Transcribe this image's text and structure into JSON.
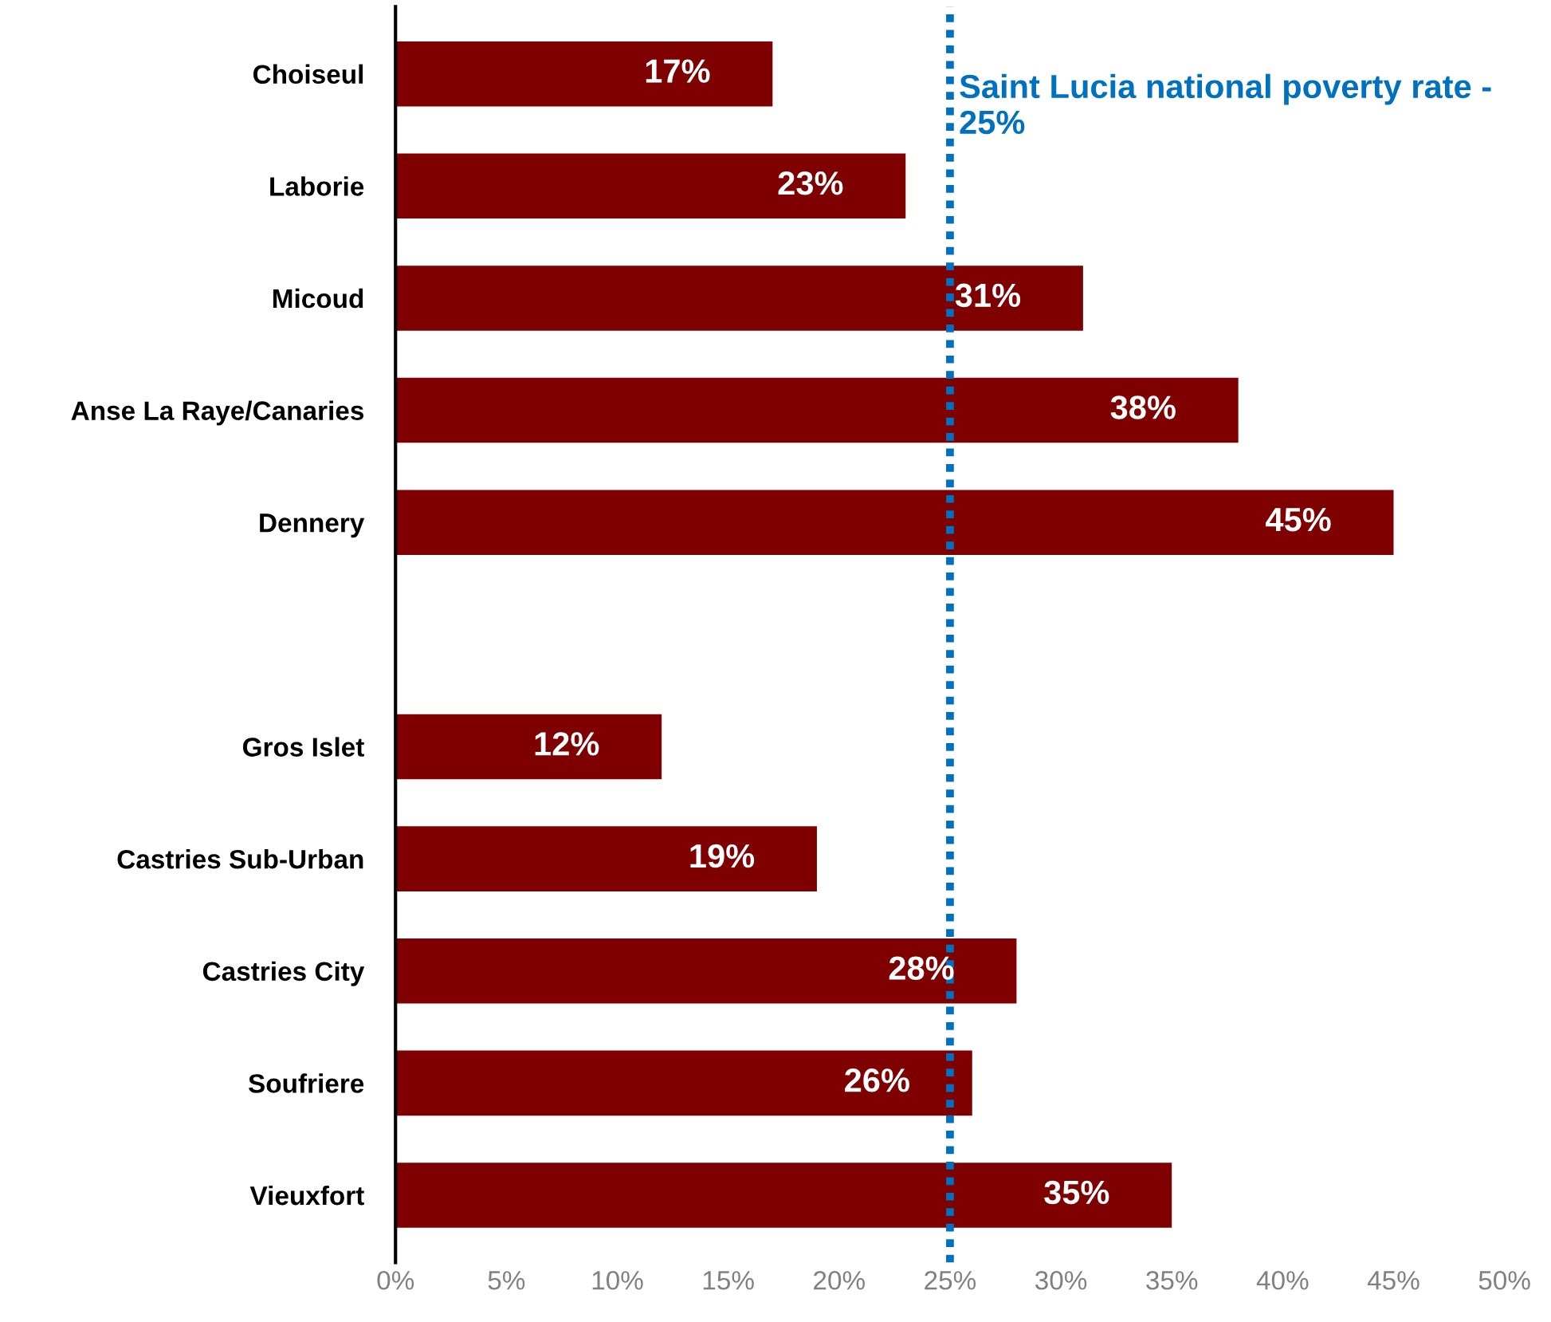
{
  "chart_data": {
    "type": "bar",
    "orientation": "horizontal",
    "categories": [
      "Choiseul",
      "Laborie",
      "Micoud",
      "Anse La Raye/Canaries",
      "Dennery",
      null,
      "Gros Islet",
      "Castries Sub-Urban",
      "Castries City",
      "Soufriere",
      "Vieuxfort"
    ],
    "values": [
      17,
      23,
      31,
      38,
      45,
      null,
      12,
      19,
      28,
      26,
      35
    ],
    "value_labels": [
      "17%",
      "23%",
      "31%",
      "38%",
      "45%",
      null,
      "12%",
      "19%",
      "28%",
      "26%",
      "35%"
    ],
    "color": "#7f0000",
    "xlim": [
      0,
      50
    ],
    "xticks": [
      {
        "value": 0,
        "label": "0%"
      },
      {
        "value": 5,
        "label": "5%"
      },
      {
        "value": 10,
        "label": "10%"
      },
      {
        "value": 15,
        "label": "15%"
      },
      {
        "value": 20,
        "label": "20%"
      },
      {
        "value": 25,
        "label": "25%"
      },
      {
        "value": 30,
        "label": "30%"
      },
      {
        "value": 35,
        "label": "35%"
      },
      {
        "value": 40,
        "label": "40%"
      },
      {
        "value": 45,
        "label": "45%"
      },
      {
        "value": 50,
        "label": "50%"
      }
    ],
    "ref_lines": [
      {
        "axis": "x",
        "value": 25,
        "label": "Saint Lucia national poverty rate - 25%",
        "color": "#0070c0",
        "line_style": "dotted"
      }
    ],
    "grid": false,
    "legend": false
  }
}
